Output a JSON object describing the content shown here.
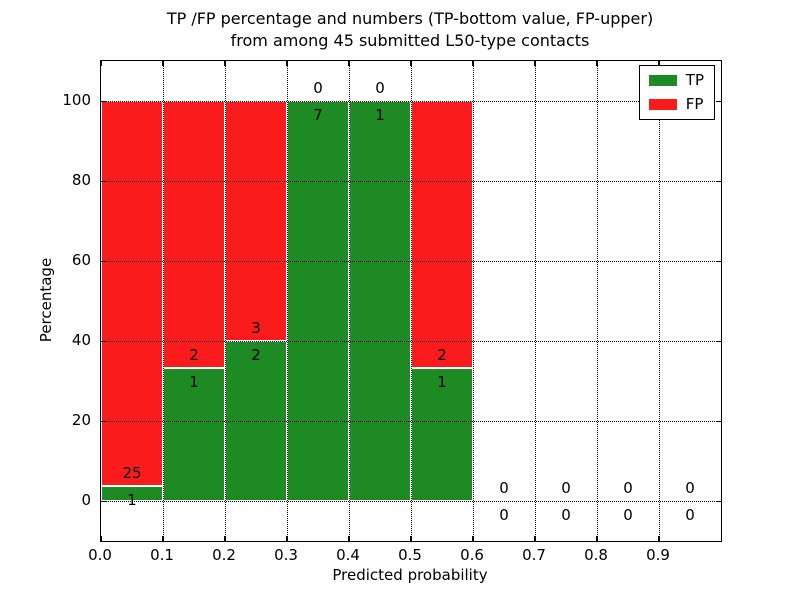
{
  "chart_data": {
    "type": "bar",
    "stacked": true,
    "title_lines": [
      "TP /FP percentage and numbers (TP-bottom value, FP-upper)",
      "from among 45 submitted L50-type contacts"
    ],
    "xlabel": "Predicted probability",
    "ylabel": "Percentage",
    "xlim": [
      0.0,
      1.0
    ],
    "ylim": [
      -10,
      110
    ],
    "grid": "dotted-black-both-axes",
    "bar_edge_color": "#ffffff",
    "yticks": [
      0,
      20,
      40,
      60,
      80,
      100
    ],
    "xticks": [
      {
        "value": 0.0,
        "label": "0.0"
      },
      {
        "value": 0.1,
        "label": "0.1"
      },
      {
        "value": 0.2,
        "label": "0.2"
      },
      {
        "value": 0.3,
        "label": "0.3"
      },
      {
        "value": 0.4,
        "label": "0.4"
      },
      {
        "value": 0.5,
        "label": "0.5"
      },
      {
        "value": 0.6,
        "label": "0.6"
      },
      {
        "value": 0.7,
        "label": "0.7"
      },
      {
        "value": 0.8,
        "label": "0.8"
      },
      {
        "value": 0.9,
        "label": "0.9"
      }
    ],
    "legend": {
      "position": "upper right",
      "entries": [
        {
          "label": "TP",
          "color": "#1E8A23"
        },
        {
          "label": "FP",
          "color": "#FA1C1C"
        }
      ]
    },
    "bins": [
      {
        "range": [
          0.0,
          0.1
        ],
        "tp": 1,
        "fp": 25
      },
      {
        "range": [
          0.1,
          0.2
        ],
        "tp": 1,
        "fp": 2
      },
      {
        "range": [
          0.2,
          0.3
        ],
        "tp": 2,
        "fp": 3
      },
      {
        "range": [
          0.3,
          0.4
        ],
        "tp": 7,
        "fp": 0
      },
      {
        "range": [
          0.4,
          0.5
        ],
        "tp": 1,
        "fp": 0
      },
      {
        "range": [
          0.5,
          0.6
        ],
        "tp": 1,
        "fp": 2
      },
      {
        "range": [
          0.6,
          0.7
        ],
        "tp": 0,
        "fp": 0
      },
      {
        "range": [
          0.7,
          0.8
        ],
        "tp": 0,
        "fp": 0
      },
      {
        "range": [
          0.8,
          0.9
        ],
        "tp": 0,
        "fp": 0
      },
      {
        "range": [
          0.9,
          1.0
        ],
        "tp": 0,
        "fp": 0
      }
    ]
  }
}
